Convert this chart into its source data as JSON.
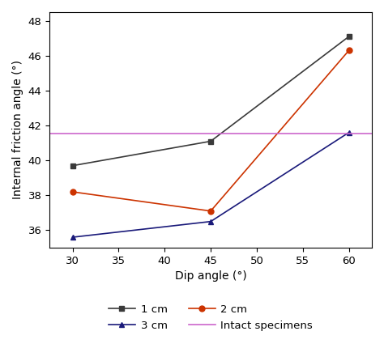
{
  "x": [
    30,
    45,
    60
  ],
  "series_1cm": [
    39.7,
    41.1,
    47.1
  ],
  "series_2cm": [
    38.2,
    37.1,
    46.3
  ],
  "series_3cm": [
    35.6,
    36.5,
    41.6
  ],
  "intact_value": 41.55,
  "color_1cm": "#3a3a3a",
  "color_2cm": "#cc3300",
  "color_3cm": "#1a1a7a",
  "color_intact": "#cc66cc",
  "xlabel": "Dip angle (°)",
  "ylabel": "Internal friction angle (°)",
  "xlim": [
    27.5,
    62.5
  ],
  "ylim": [
    35.0,
    48.5
  ],
  "xticks": [
    30,
    35,
    40,
    45,
    50,
    55,
    60
  ],
  "yticks": [
    36,
    38,
    40,
    42,
    44,
    46,
    48
  ],
  "legend_1cm": "1 cm",
  "legend_2cm": "2 cm",
  "legend_3cm": "3 cm",
  "legend_intact": "Intact specimens"
}
